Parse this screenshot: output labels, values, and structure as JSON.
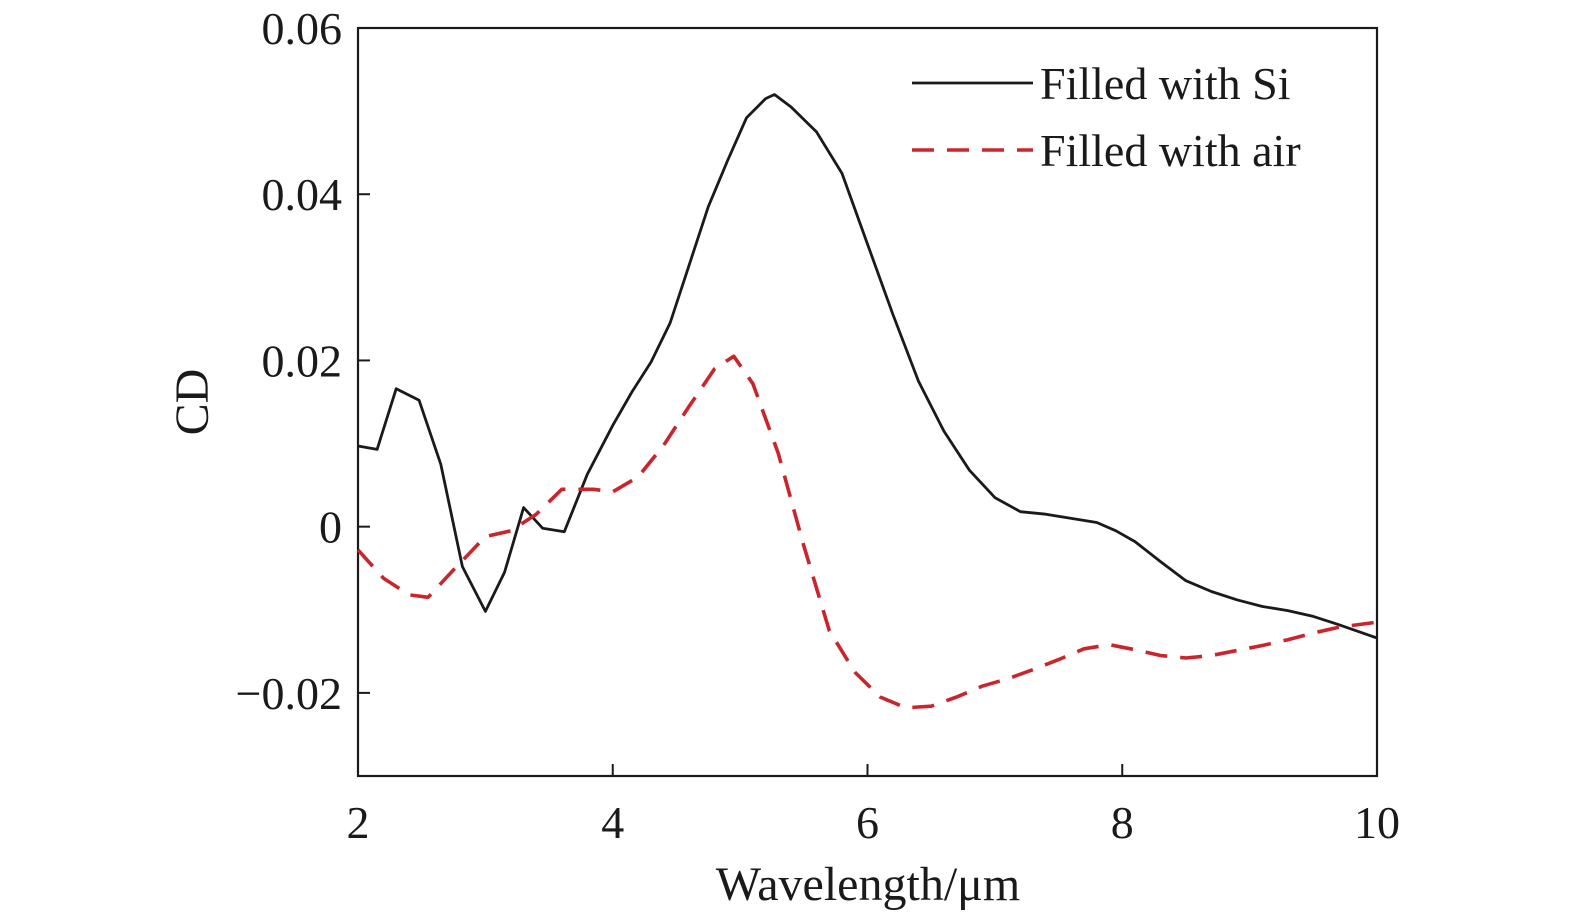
{
  "chart_data": {
    "type": "line",
    "title": "",
    "xlabel": "Wavelength/μm",
    "ylabel": "CD",
    "xlim": [
      2,
      10
    ],
    "ylim": [
      -0.03,
      0.06
    ],
    "xticks": [
      2,
      4,
      6,
      8,
      10
    ],
    "xtick_labels": [
      "2",
      "4",
      "6",
      "8",
      "10"
    ],
    "yticks": [
      -0.02,
      0,
      0.02,
      0.04,
      0.06
    ],
    "ytick_labels": [
      "−0.02",
      "0",
      "0.02",
      "0.04",
      "0.06"
    ],
    "grid": false,
    "legend_position": "top-right",
    "series": [
      {
        "name": "Filled with Si",
        "color": "#1a1a1a",
        "style": "solid",
        "x": [
          2.0,
          2.15,
          2.3,
          2.48,
          2.65,
          2.82,
          3.0,
          3.15,
          3.3,
          3.45,
          3.62,
          3.8,
          4.0,
          4.15,
          4.3,
          4.45,
          4.6,
          4.75,
          4.9,
          5.05,
          5.2,
          5.27,
          5.4,
          5.6,
          5.8,
          6.0,
          6.2,
          6.4,
          6.6,
          6.8,
          7.0,
          7.2,
          7.4,
          7.6,
          7.8,
          7.95,
          8.1,
          8.3,
          8.5,
          8.7,
          8.9,
          9.1,
          9.3,
          9.5,
          9.7,
          10.0
        ],
        "y": [
          0.0097,
          0.0093,
          0.0166,
          0.0152,
          0.0075,
          -0.0048,
          -0.0102,
          -0.0055,
          0.0023,
          -0.0002,
          -0.0006,
          0.0063,
          0.0122,
          0.0162,
          0.0198,
          0.0245,
          0.0315,
          0.0385,
          0.044,
          0.0492,
          0.0515,
          0.052,
          0.0505,
          0.0475,
          0.0425,
          0.034,
          0.0255,
          0.0175,
          0.0115,
          0.0068,
          0.0035,
          0.0018,
          0.0015,
          0.001,
          0.0005,
          -0.0005,
          -0.0018,
          -0.0042,
          -0.0065,
          -0.0078,
          -0.0088,
          -0.0096,
          -0.0101,
          -0.0108,
          -0.0118,
          -0.0134
        ]
      },
      {
        "name": "Filled with air",
        "color": "#c8262c",
        "style": "dashed",
        "x": [
          2.0,
          2.2,
          2.4,
          2.55,
          2.75,
          3.0,
          3.2,
          3.4,
          3.6,
          3.85,
          4.0,
          4.2,
          4.4,
          4.6,
          4.8,
          4.95,
          5.1,
          5.3,
          5.5,
          5.7,
          5.9,
          6.1,
          6.3,
          6.5,
          6.7,
          6.9,
          7.1,
          7.3,
          7.5,
          7.7,
          7.9,
          8.1,
          8.3,
          8.5,
          8.7,
          8.9,
          9.1,
          9.3,
          9.5,
          9.7,
          10.0
        ],
        "y": [
          -0.0028,
          -0.0062,
          -0.0082,
          -0.0085,
          -0.0052,
          -0.0012,
          -0.0005,
          0.0015,
          0.0045,
          0.0045,
          0.0042,
          0.006,
          0.0098,
          0.0145,
          0.019,
          0.0205,
          0.0172,
          0.0088,
          -0.0023,
          -0.0125,
          -0.0175,
          -0.0205,
          -0.0218,
          -0.0216,
          -0.0205,
          -0.0192,
          -0.0183,
          -0.0172,
          -0.016,
          -0.0147,
          -0.0142,
          -0.0148,
          -0.0155,
          -0.0158,
          -0.0155,
          -0.0149,
          -0.0143,
          -0.0136,
          -0.0128,
          -0.0121,
          -0.0115
        ]
      }
    ]
  }
}
